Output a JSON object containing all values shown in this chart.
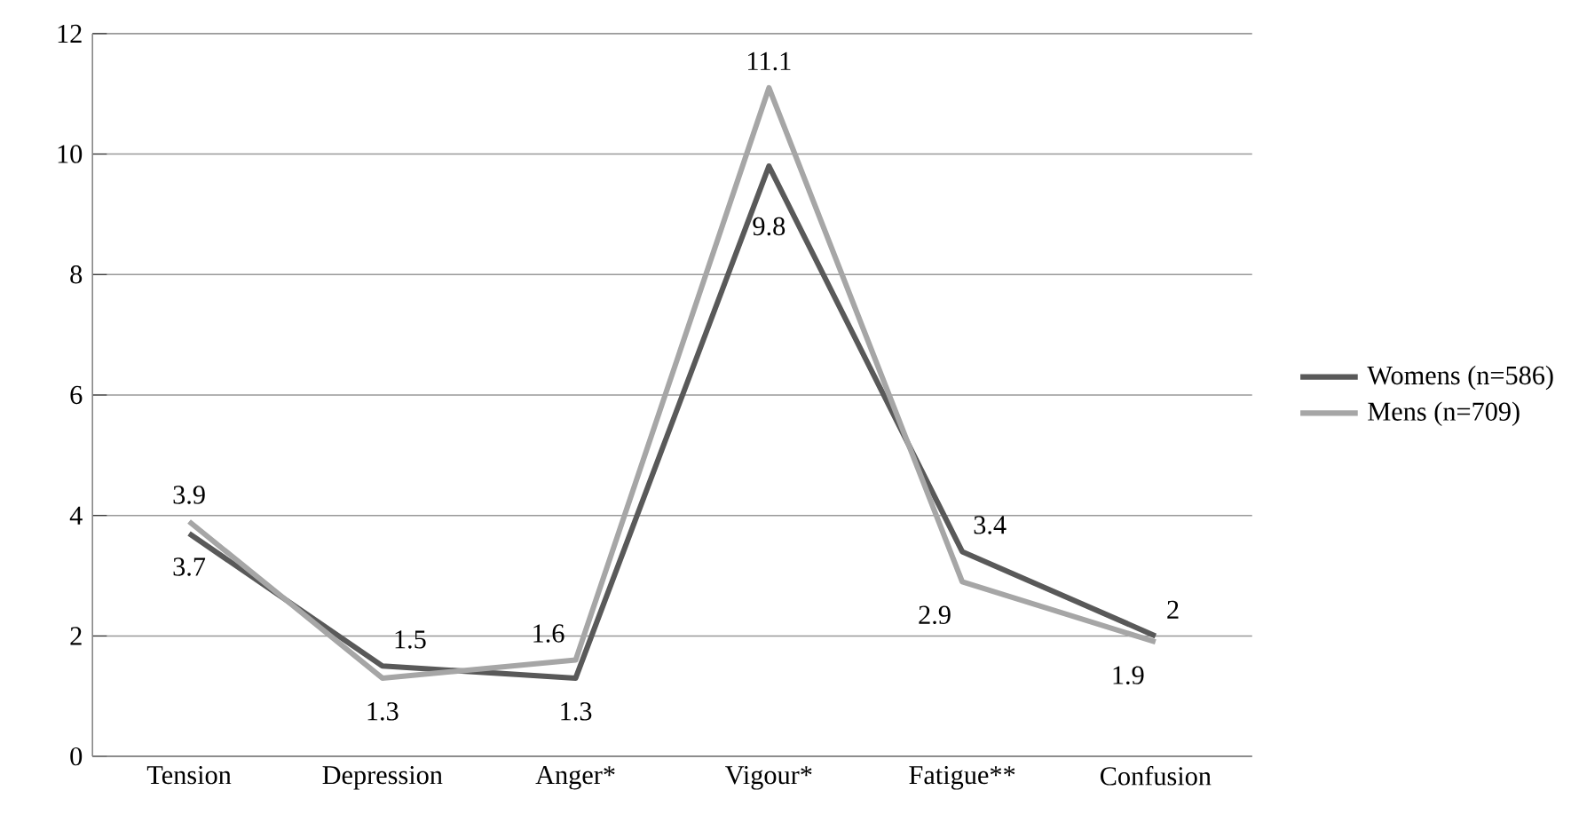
{
  "chart_data": {
    "type": "line",
    "categories": [
      "Tension",
      "Depression",
      "Anger*",
      "Vigour*",
      "Fatigue**",
      "Confusion"
    ],
    "series": [
      {
        "name": "Womens (n=586)",
        "color": "#595959",
        "values": [
          3.7,
          1.5,
          1.3,
          9.8,
          3.4,
          2
        ]
      },
      {
        "name": "Mens (n=709)",
        "color": "#a6a6a6",
        "values": [
          3.9,
          1.3,
          1.6,
          11.1,
          2.9,
          1.9
        ]
      }
    ],
    "ylim": [
      0,
      12
    ],
    "yticks": [
      0,
      2,
      4,
      6,
      8,
      10,
      12
    ],
    "grid": "y",
    "legend": "right",
    "data_labels": true,
    "marker": "none",
    "line_style": "solid"
  }
}
